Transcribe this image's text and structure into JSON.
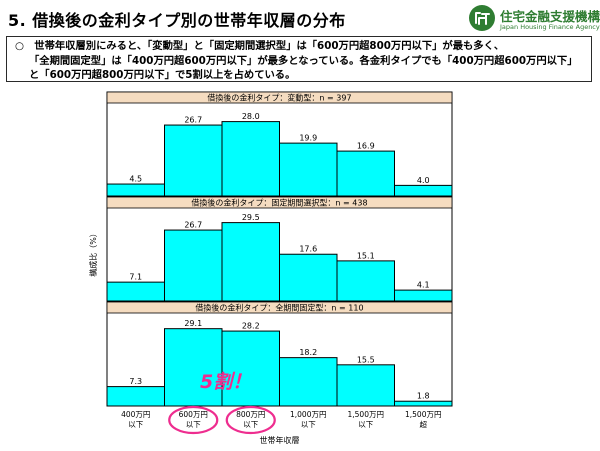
{
  "header": {
    "title": "5. 借換後の金利タイプ別の世帯年収層の分布",
    "logo_name": "住宅金融支援機構",
    "logo_sub": "Japan Housing Finance Agency",
    "logo_mark": "jhf"
  },
  "summary": {
    "bullet": "○",
    "lines": [
      "世帯年収層別にみると、「変動型」と「固定期間選択型」は「600万円超800万円以下」が最も多く、",
      "「全期間固定型」は「400万円超600万円以下」が最多となっている。各金利タイプでも「400万円超600万円以下」",
      "と「600万円超800万円以下」で5割以上を占めている。"
    ]
  },
  "chart_data": {
    "type": "bar",
    "xlabel": "世帯年収層",
    "ylabel": "構成比（%）",
    "categories": [
      "400万円\n以下",
      "600万円\n以下",
      "800万円\n以下",
      "1,000万円\n以下",
      "1,500万円\n以下",
      "1,500万円\n超"
    ],
    "ylim": [
      0,
      35
    ],
    "colors": {
      "bar": "#00ffff",
      "strip": "#f5dcc0",
      "highlight": "#ee2d8f"
    },
    "series": [
      {
        "name": "借換後の金利タイプ：変動型：n = 397",
        "values": [
          4.5,
          26.7,
          28.0,
          19.9,
          16.9,
          4.0
        ]
      },
      {
        "name": "借換後の金利タイプ：固定期間選択型：n = 438",
        "values": [
          7.1,
          26.7,
          29.5,
          17.6,
          15.1,
          4.1
        ]
      },
      {
        "name": "借換後の金利タイプ：全期間固定型：n = 110",
        "values": [
          7.3,
          29.1,
          28.2,
          18.2,
          15.5,
          1.8
        ]
      }
    ],
    "highlighted_categories": [
      1,
      2
    ],
    "annotation": "5割！"
  }
}
